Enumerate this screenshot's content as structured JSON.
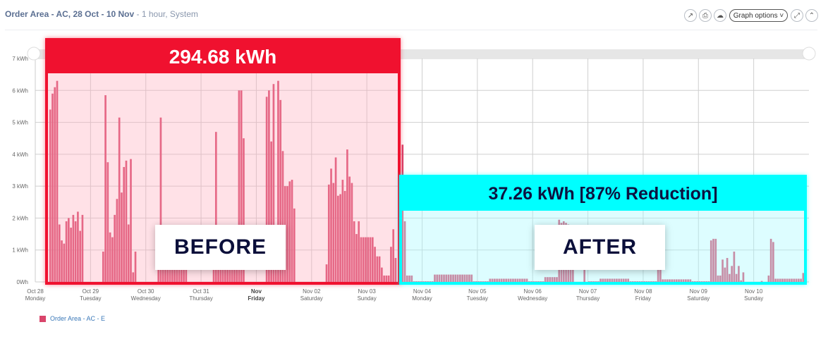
{
  "header": {
    "title": "Order Area - AC, 28 Oct  - 10 Nov",
    "subtitle": " - 1 hour, System",
    "graph_options_label": "Graph options ˅",
    "icons": [
      "external-link-icon",
      "print-icon",
      "download-cloud-icon",
      "expand-icon",
      "collapse-icon"
    ]
  },
  "annotations": {
    "before_total": "294.68 kWh",
    "before_label": "BEFORE",
    "after_total": "37.26 kWh [87% Reduction]",
    "after_label": "AFTER",
    "before_color": "#f0112f",
    "after_color": "#00ffff"
  },
  "chart_data": {
    "type": "bar",
    "interval": "1 hour",
    "bar_color": "#d9456b",
    "ylim": [
      0,
      7
    ],
    "y_ticks": [
      "0Wh",
      "1 kWh",
      "2 kWh",
      "3 kWh",
      "4 kWh",
      "5 kWh",
      "6 kWh",
      "7 kWh"
    ],
    "grid": true,
    "legend_position": "bottom-left",
    "x_ticks": [
      {
        "date": "Oct 28",
        "day": "Monday"
      },
      {
        "date": "Oct 29",
        "day": "Tuesday"
      },
      {
        "date": "Oct 30",
        "day": "Wednesday"
      },
      {
        "date": "Oct 31",
        "day": "Thursday"
      },
      {
        "date": "Nov",
        "day": "Friday",
        "bold": true
      },
      {
        "date": "Nov 02",
        "day": "Saturday"
      },
      {
        "date": "Nov 03",
        "day": "Sunday"
      },
      {
        "date": "Nov 04",
        "day": "Monday"
      },
      {
        "date": "Nov 05",
        "day": "Tuesday"
      },
      {
        "date": "Nov 06",
        "day": "Wednesday"
      },
      {
        "date": "Nov 07",
        "day": "Thursday"
      },
      {
        "date": "Nov 08",
        "day": "Friday"
      },
      {
        "date": "Nov 09",
        "day": "Saturday"
      },
      {
        "date": "Nov 10",
        "day": "Sunday"
      }
    ],
    "series": [
      {
        "name": "Order Area - AC - E",
        "unit": "kWh",
        "hourly_values_by_day": [
          [
            0,
            0,
            0,
            0,
            0,
            0,
            5.4,
            5.9,
            6.1,
            6.3,
            1.8,
            1.3,
            1.2,
            1.9,
            2.0,
            1.7,
            2.1,
            1.9,
            2.2,
            1.6,
            2.1,
            0,
            0,
            0
          ],
          [
            0,
            0,
            0,
            0,
            0,
            0.95,
            5.85,
            3.75,
            1.55,
            1.4,
            2.1,
            2.6,
            5.15,
            2.8,
            3.6,
            3.8,
            1.8,
            3.85,
            0.3,
            0.95,
            0,
            0,
            0,
            0
          ],
          [
            0,
            0,
            0,
            0,
            0,
            1.0,
            5.15,
            1.0,
            1.0,
            1.0,
            1.0,
            1.0,
            1.0,
            1.0,
            1.0,
            1.0,
            1.0,
            1.0,
            0,
            0,
            0,
            0,
            0,
            0
          ],
          [
            0,
            0,
            0,
            0,
            0,
            1.0,
            4.7,
            1.0,
            1.0,
            1.0,
            1.0,
            1.0,
            1.4,
            1.55,
            1.3,
            1.4,
            6.0,
            6.0,
            4.5,
            0,
            0,
            0,
            0,
            0
          ],
          [
            0,
            0,
            0,
            0,
            5.8,
            6.0,
            4.4,
            6.2,
            1.5,
            6.3,
            5.7,
            4.1,
            3.0,
            3.0,
            3.15,
            3.2,
            2.3,
            0,
            0,
            0,
            0,
            0,
            0,
            0
          ],
          [
            0,
            0,
            0,
            0,
            0,
            0,
            0.55,
            3.05,
            3.55,
            3.1,
            3.9,
            2.7,
            2.75,
            3.2,
            2.85,
            4.15,
            3.3,
            3.1,
            1.9,
            1.5,
            1.9,
            1.4,
            1.4,
            1.4
          ],
          [
            1.4,
            1.4,
            1.4,
            1.1,
            0.8,
            0.8,
            0.45,
            0.2,
            0.2,
            0.2,
            1.1,
            1.65,
            0.75,
            0,
            0,
            4.3,
            1.9,
            0.2,
            0.2,
            0.2,
            0.02,
            0.02,
            0.02,
            0.02
          ],
          [
            0.02,
            0.02,
            0.02,
            0.02,
            0.02,
            0.23,
            0.23,
            0.23,
            0.23,
            0.23,
            0.23,
            0.23,
            0.23,
            0.23,
            0.23,
            0.23,
            0.23,
            0.23,
            0.23,
            0.23,
            0.23,
            0.23,
            0.02,
            0.02
          ],
          [
            0.02,
            0.02,
            0.02,
            0.02,
            0.02,
            0.1,
            0.1,
            0.1,
            0.1,
            0.1,
            0.1,
            0.1,
            0.1,
            0.1,
            0.1,
            0.1,
            0.1,
            0.1,
            0.1,
            0.1,
            0.1,
            0.1,
            0.02,
            0.02
          ],
          [
            0.02,
            0.02,
            0.02,
            0.02,
            0.02,
            0.15,
            0.15,
            0.15,
            0.15,
            0.15,
            0.15,
            1.95,
            1.85,
            1.9,
            1.85,
            1.8,
            1.0,
            1.0,
            0,
            0,
            0,
            0,
            0.8,
            0
          ],
          [
            0.02,
            0.02,
            0.02,
            0.02,
            0.02,
            0.1,
            0.1,
            0.1,
            0.1,
            0.1,
            0.1,
            0.1,
            0.1,
            0.1,
            0.1,
            0.1,
            0.1,
            0.1,
            0.02,
            0.02,
            0.02,
            0.02,
            0.02,
            0.02
          ],
          [
            0.02,
            0.02,
            0.02,
            0.02,
            0.02,
            0.02,
            0.4,
            0.7,
            0.08,
            0.08,
            0.08,
            0.08,
            0.08,
            0.08,
            0.08,
            0.08,
            0.08,
            0.08,
            0.08,
            0.08,
            0.08,
            0.02,
            0.02,
            0.02
          ],
          [
            0.02,
            0.02,
            0.02,
            0.02,
            0.02,
            1.3,
            1.35,
            1.35,
            0.2,
            0.2,
            0.7,
            0.45,
            0.75,
            0.25,
            0.5,
            0.95,
            0.25,
            0.5,
            0.05,
            0.3,
            0,
            0,
            0,
            0
          ],
          [
            0,
            0,
            0,
            0.03,
            0,
            0,
            0.2,
            1.35,
            1.25,
            0.1,
            0.1,
            0.1,
            0.1,
            0.1,
            0.1,
            0.1,
            0.1,
            0.1,
            0.1,
            0.1,
            0.1,
            0.28,
            0,
            0
          ]
        ]
      }
    ]
  }
}
